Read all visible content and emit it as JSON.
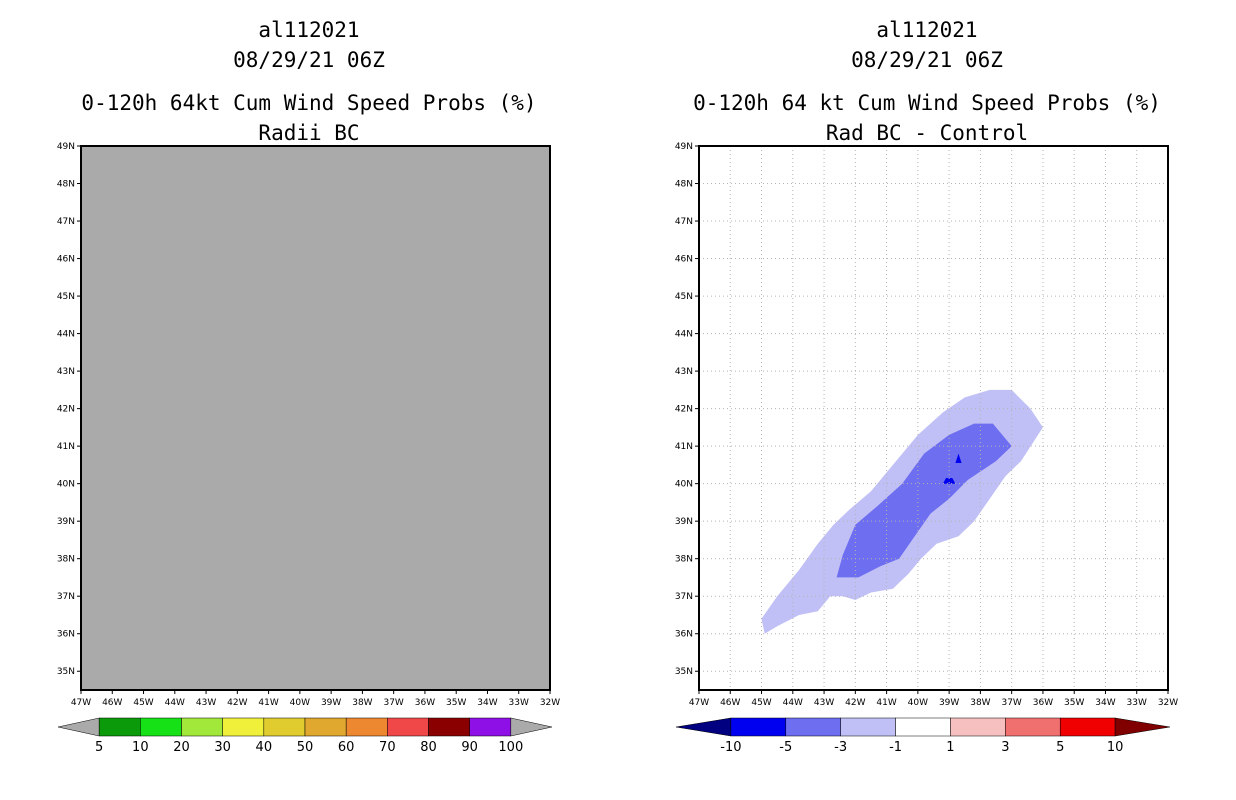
{
  "left": {
    "title_lines": [
      "al112021",
      "08/29/21 06Z",
      "0-120h 64kt Cum Wind Speed Probs (%)",
      "Radii BC"
    ],
    "colorbar": {
      "colors": [
        "#aaaaaa",
        "#0a9a0a",
        "#16e016",
        "#a2e83a",
        "#f0f03a",
        "#e0cc2e",
        "#e0a82e",
        "#ee8830",
        "#f04848",
        "#8a0000",
        "#8e10e6",
        "#aaaaaa"
      ],
      "labels": [
        "5",
        "10",
        "20",
        "30",
        "40",
        "50",
        "60",
        "70",
        "80",
        "90",
        "100"
      ]
    }
  },
  "right": {
    "title_lines": [
      "al112021",
      "08/29/21 06Z",
      "0-120h 64 kt Cum Wind Speed Probs (%)",
      "Rad BC - Control"
    ],
    "colorbar": {
      "colors": [
        "#000080",
        "#0000f0",
        "#6e6ef0",
        "#c0c0f6",
        "#ffffff",
        "#f6c0c0",
        "#f07070",
        "#f00000",
        "#800000"
      ],
      "labels": [
        "-10",
        "-5",
        "-3",
        "-1",
        "1",
        "3",
        "5",
        "10"
      ]
    }
  },
  "chart_data": [
    {
      "type": "heatmap",
      "title": "0-120h 64kt Cum Wind Speed Probs (%) Radii BC",
      "xlim": [
        -47,
        -32
      ],
      "ylim": [
        34.5,
        49
      ],
      "x_ticks": [
        "47W",
        "46W",
        "45W",
        "44W",
        "43W",
        "42W",
        "41W",
        "40W",
        "39W",
        "38W",
        "37W",
        "36W",
        "35W",
        "34W",
        "33W",
        "32W"
      ],
      "y_ticks": [
        "35N",
        "36N",
        "37N",
        "38N",
        "39N",
        "40N",
        "41N",
        "42N",
        "43N",
        "44N",
        "45N",
        "46N",
        "47N",
        "48N",
        "49N"
      ],
      "grid": false,
      "field": "uniformly below 5% over the whole domain",
      "background": "#aaaaaa"
    },
    {
      "type": "heatmap",
      "title": "0-120h 64 kt Cum Wind Speed Probs (%) Rad BC - Control",
      "xlim": [
        -47,
        -32
      ],
      "ylim": [
        34.5,
        49
      ],
      "x_ticks": [
        "47W",
        "46W",
        "45W",
        "44W",
        "43W",
        "42W",
        "41W",
        "40W",
        "39W",
        "38W",
        "37W",
        "36W",
        "35W",
        "34W",
        "33W",
        "32W"
      ],
      "y_ticks": [
        "35N",
        "36N",
        "37N",
        "38N",
        "39N",
        "40N",
        "41N",
        "42N",
        "43N",
        "44N",
        "45N",
        "46N",
        "47N",
        "48N",
        "49N"
      ],
      "grid": true,
      "regions": [
        {
          "name": "-3 to -1",
          "color": "#c0c0f6",
          "points": [
            [
              -44.9,
              36.0
            ],
            [
              -44.5,
              36.2
            ],
            [
              -43.8,
              36.5
            ],
            [
              -43.2,
              36.6
            ],
            [
              -42.8,
              37.0
            ],
            [
              -42.4,
              37.0
            ],
            [
              -42.0,
              36.9
            ],
            [
              -41.5,
              37.1
            ],
            [
              -40.8,
              37.2
            ],
            [
              -40.3,
              37.6
            ],
            [
              -39.9,
              38.0
            ],
            [
              -39.4,
              38.4
            ],
            [
              -38.7,
              38.6
            ],
            [
              -38.2,
              39.0
            ],
            [
              -37.7,
              39.6
            ],
            [
              -37.2,
              40.2
            ],
            [
              -36.7,
              40.6
            ],
            [
              -36.0,
              41.5
            ],
            [
              -36.4,
              42.0
            ],
            [
              -37.0,
              42.5
            ],
            [
              -37.7,
              42.5
            ],
            [
              -38.5,
              42.3
            ],
            [
              -39.2,
              41.9
            ],
            [
              -40.0,
              41.3
            ],
            [
              -40.8,
              40.5
            ],
            [
              -41.5,
              39.8
            ],
            [
              -42.2,
              39.3
            ],
            [
              -42.7,
              38.9
            ],
            [
              -43.2,
              38.4
            ],
            [
              -43.8,
              37.7
            ],
            [
              -44.5,
              37.0
            ],
            [
              -45.0,
              36.4
            ]
          ]
        },
        {
          "name": "-5 to -3",
          "color": "#6e6ef0",
          "points": [
            [
              -42.6,
              37.5
            ],
            [
              -41.9,
              37.5
            ],
            [
              -41.2,
              37.8
            ],
            [
              -40.6,
              38.0
            ],
            [
              -40.1,
              38.6
            ],
            [
              -39.6,
              39.2
            ],
            [
              -39.0,
              39.6
            ],
            [
              -38.4,
              40.1
            ],
            [
              -37.5,
              40.6
            ],
            [
              -37.0,
              41.0
            ],
            [
              -37.6,
              41.6
            ],
            [
              -38.2,
              41.6
            ],
            [
              -39.0,
              41.3
            ],
            [
              -39.8,
              40.8
            ],
            [
              -40.5,
              40.0
            ],
            [
              -41.3,
              39.4
            ],
            [
              -42.0,
              38.9
            ],
            [
              -42.4,
              38.1
            ]
          ]
        },
        {
          "name": "-10 to -5 (a)",
          "color": "#0000f0",
          "points": [
            [
              -38.8,
              40.55
            ],
            [
              -38.6,
              40.55
            ],
            [
              -38.7,
              40.8
            ]
          ]
        },
        {
          "name": "-10 to -5 (b)",
          "color": "#0000f0",
          "points": [
            [
              -39.2,
              40.0
            ],
            [
              -38.8,
              40.0
            ],
            [
              -38.9,
              40.15
            ],
            [
              -39.1,
              40.15
            ]
          ]
        }
      ]
    }
  ]
}
